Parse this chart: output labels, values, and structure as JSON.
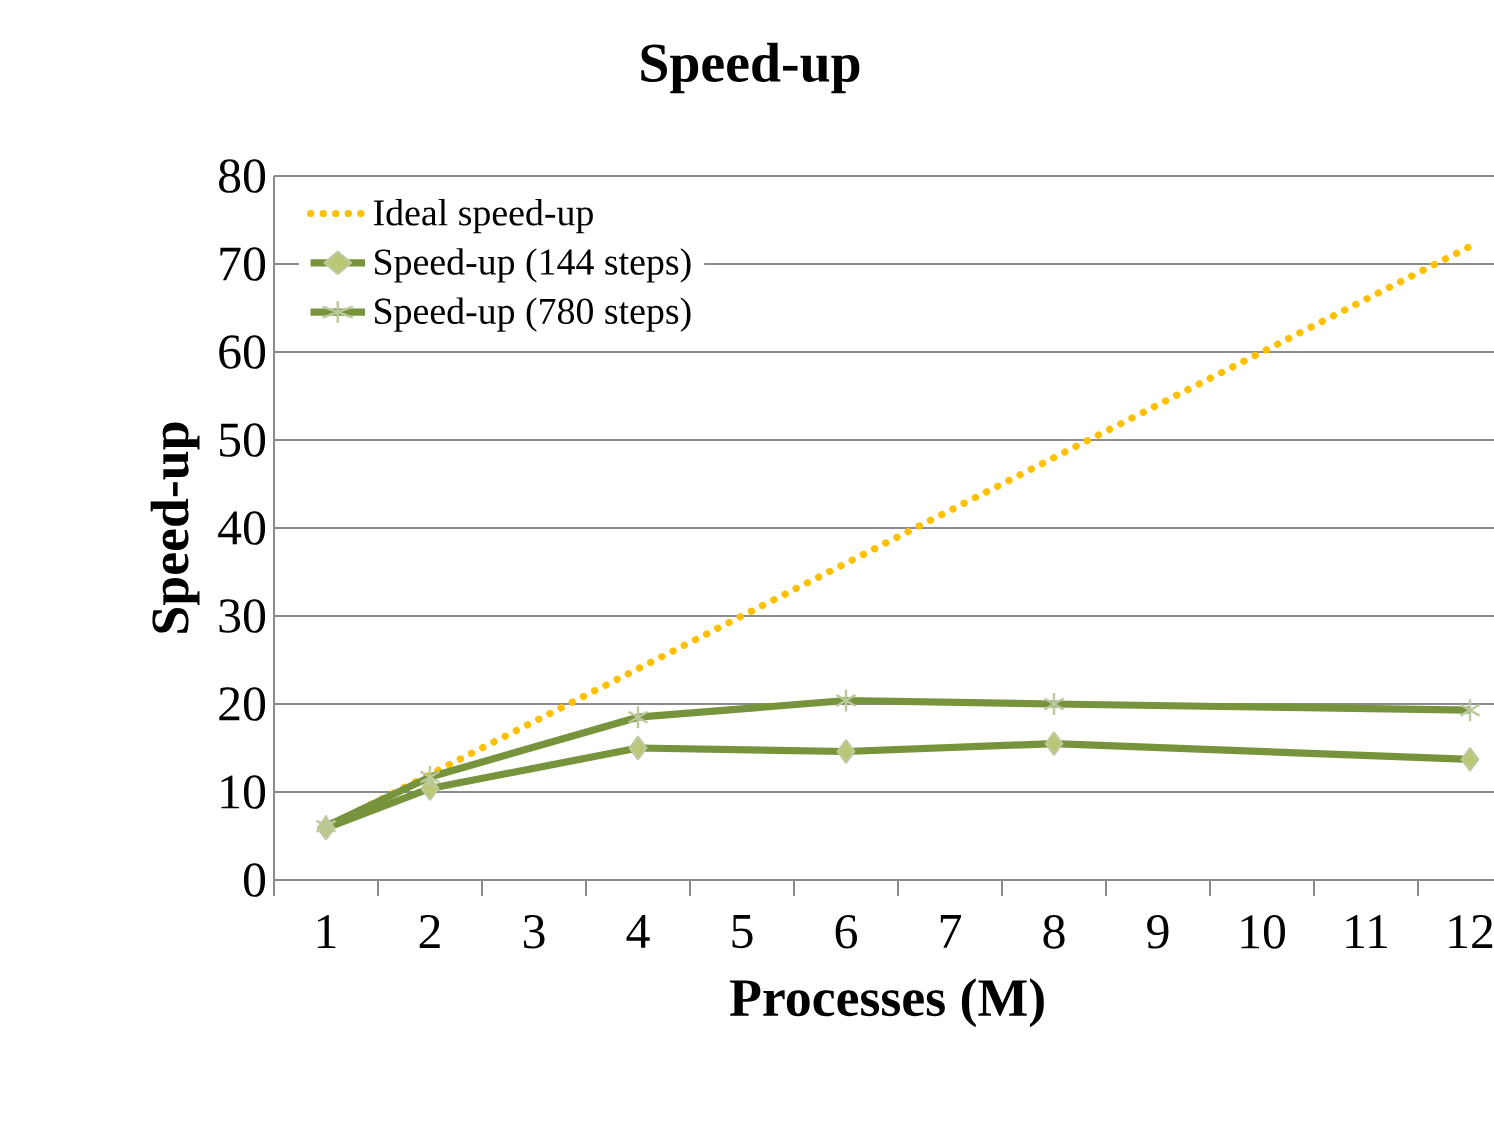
{
  "chart_data": {
    "type": "line",
    "title": "Speed-up",
    "xlabel": "Processes (M)",
    "ylabel": "Speed-up",
    "xlim": [
      0.5,
      12.3
    ],
    "ylim": [
      0,
      80
    ],
    "xticks": [
      {
        "value": 0.5,
        "label": null
      },
      1,
      {
        "value": 1.5,
        "label": null
      },
      2,
      {
        "value": 2.5,
        "label": null
      },
      3,
      {
        "value": 3.5,
        "label": null
      },
      4,
      {
        "value": 4.5,
        "label": null
      },
      5,
      {
        "value": 5.5,
        "label": null
      },
      6,
      {
        "value": 6.5,
        "label": null
      },
      7,
      {
        "value": 7.5,
        "label": null
      },
      8,
      {
        "value": 8.5,
        "label": null
      },
      9,
      {
        "value": 9.5,
        "label": null
      },
      10,
      {
        "value": 10.5,
        "label": null
      },
      11,
      {
        "value": 11.5,
        "label": null
      },
      12
    ],
    "yticks": [
      0,
      10,
      20,
      30,
      40,
      50,
      60,
      70,
      80
    ],
    "grid": "y",
    "legend": "top left",
    "series": [
      {
        "name": "Ideal speed-up",
        "color": "#ffc000",
        "line_style": "dotted",
        "marker": "none",
        "x": [
          1,
          2,
          4,
          6,
          8,
          12
        ],
        "values": [
          6,
          12,
          24,
          36,
          48,
          72
        ]
      },
      {
        "name": "Speed-up (144 steps)",
        "color": "#77933c",
        "line_style": "solid",
        "marker": "diamond",
        "x": [
          1,
          2,
          4,
          6,
          8,
          12
        ],
        "values": [
          5.9,
          10.4,
          15.0,
          14.6,
          15.5,
          13.7
        ]
      },
      {
        "name": "Speed-up (780 steps)",
        "color": "#77933c",
        "line_style": "solid",
        "marker": "cross",
        "x": [
          1,
          2,
          4,
          6,
          8,
          12
        ],
        "values": [
          6.1,
          11.7,
          18.5,
          20.4,
          20.0,
          19.3
        ]
      }
    ]
  }
}
